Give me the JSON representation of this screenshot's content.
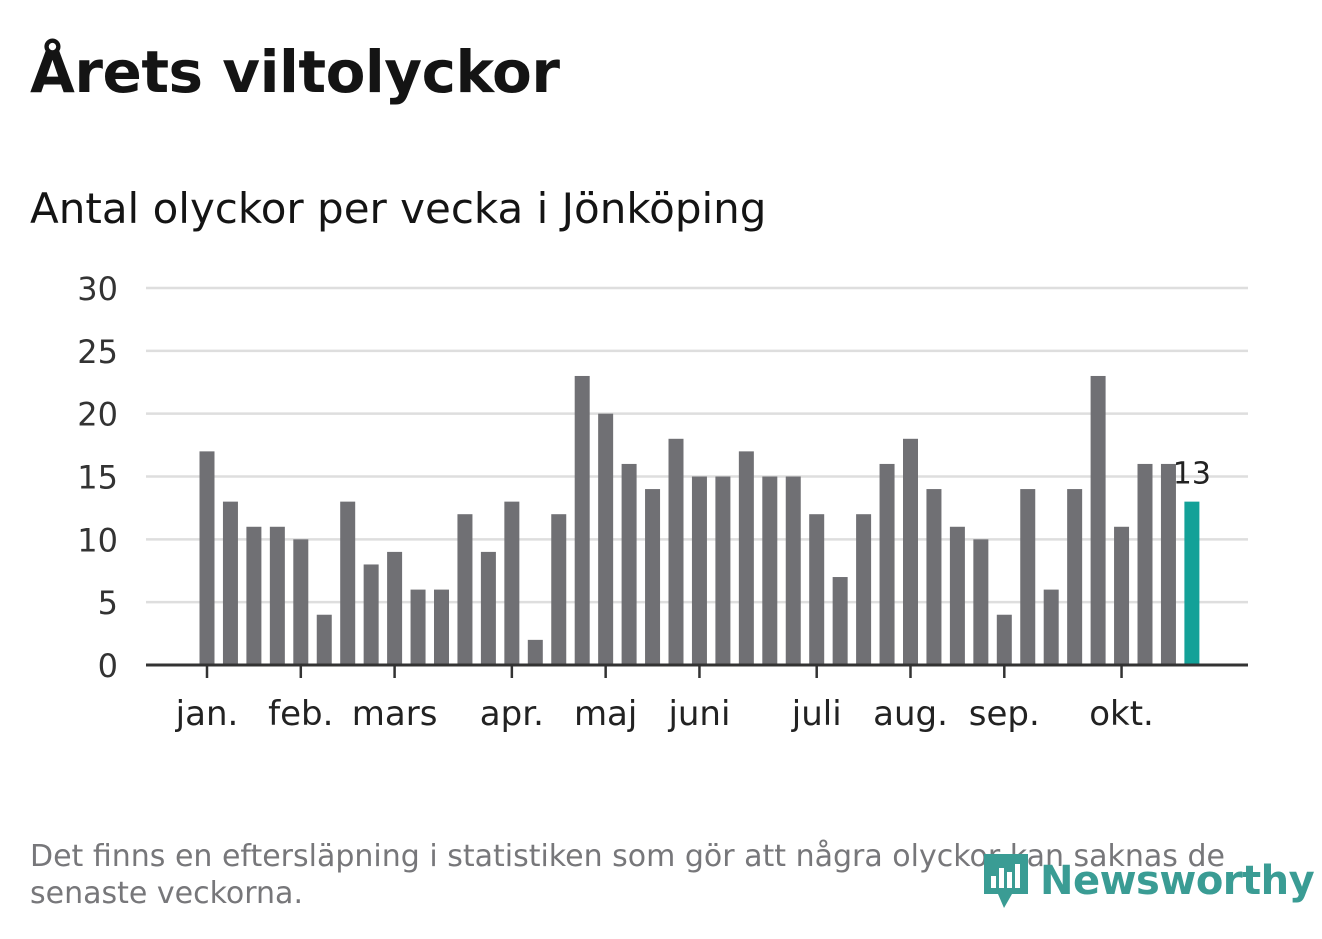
{
  "header": {
    "title": "Årets viltolyckor",
    "subtitle": "Antal olyckor per vecka i Jönköping"
  },
  "chart_data": {
    "type": "bar",
    "values": [
      17,
      13,
      11,
      11,
      10,
      4,
      13,
      8,
      9,
      6,
      6,
      12,
      9,
      13,
      2,
      12,
      23,
      20,
      16,
      14,
      18,
      15,
      15,
      17,
      15,
      15,
      12,
      7,
      12,
      16,
      18,
      14,
      11,
      10,
      4,
      14,
      6,
      14,
      23,
      11,
      16,
      16,
      13
    ],
    "ylim": [
      0,
      30
    ],
    "yticks": [
      0,
      5,
      10,
      15,
      20,
      25,
      30
    ],
    "month_labels": [
      {
        "label": "jan.",
        "bar_index": 0
      },
      {
        "label": "feb.",
        "bar_index": 4
      },
      {
        "label": "mars",
        "bar_index": 8
      },
      {
        "label": "apr.",
        "bar_index": 13
      },
      {
        "label": "maj",
        "bar_index": 17
      },
      {
        "label": "juni",
        "bar_index": 21
      },
      {
        "label": "juli",
        "bar_index": 26
      },
      {
        "label": "aug.",
        "bar_index": 30
      },
      {
        "label": "sep.",
        "bar_index": 34
      },
      {
        "label": "okt.",
        "bar_index": 39
      }
    ],
    "highlight_label": "13",
    "grid": true,
    "colors": {
      "bar": "#707074",
      "highlight": "#13a198",
      "grid": "#dedede",
      "axis": "#333333"
    }
  },
  "footer": {
    "note": "Det finns en eftersläpning i statistiken som gör att några olyckor kan saknas de senaste veckorna.",
    "brand": "Newsworthy",
    "brand_icon": "newsworthy-logo-icon"
  }
}
